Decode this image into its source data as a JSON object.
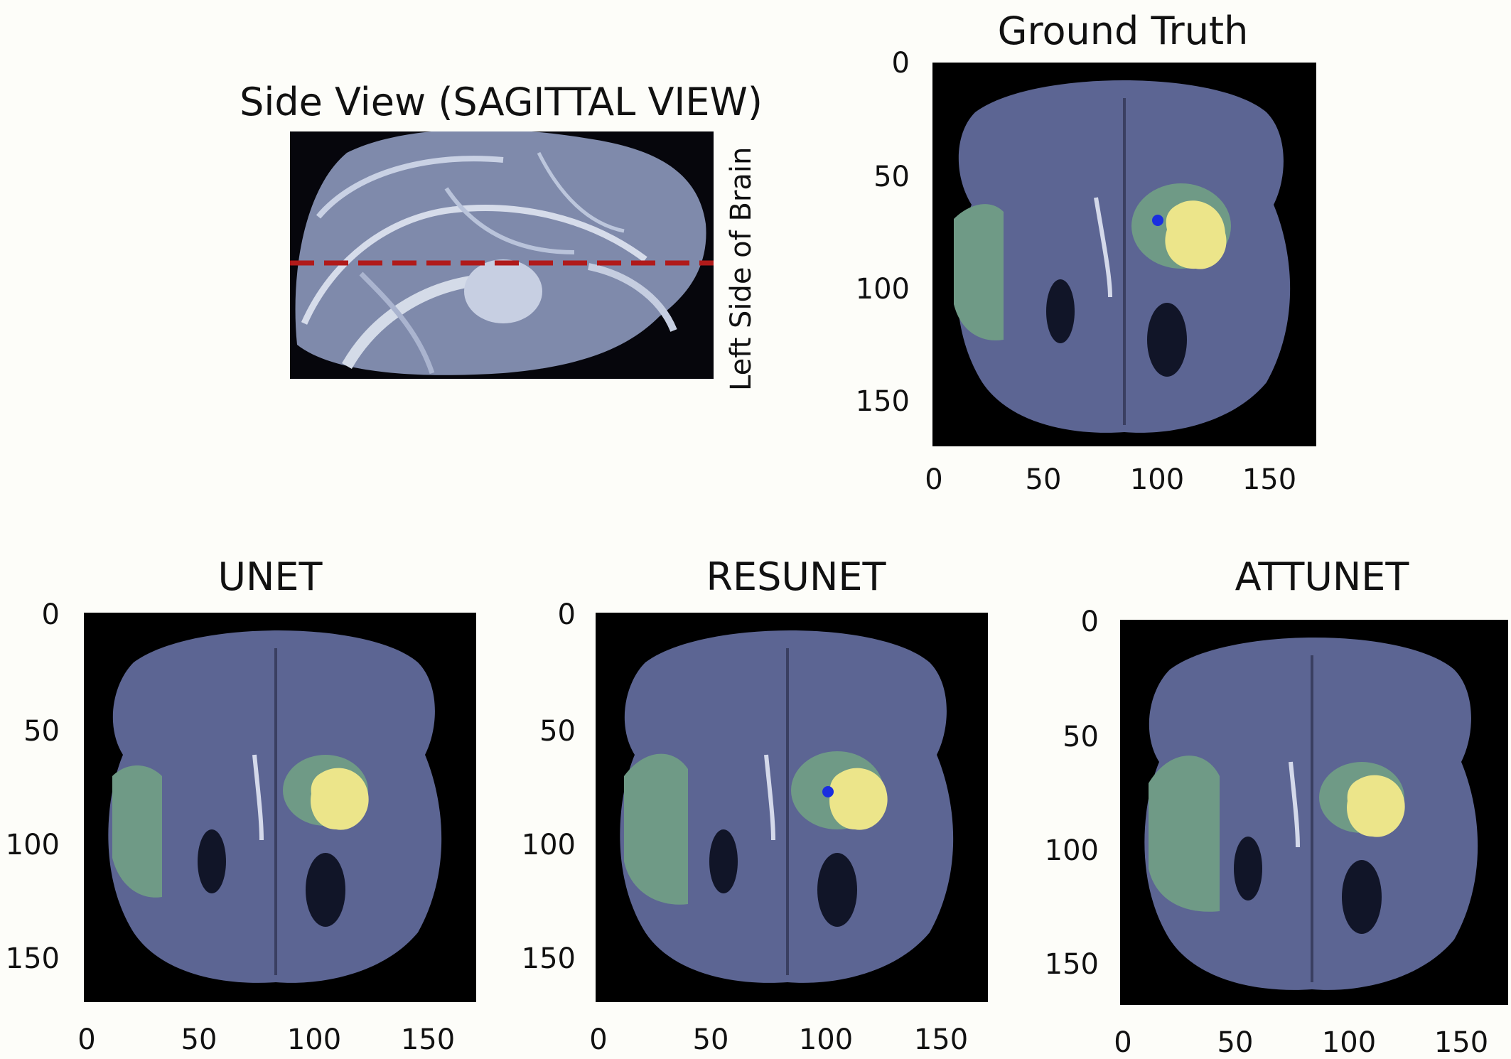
{
  "side_view": {
    "title": "Side View (SAGITTAL VIEW)",
    "slice_line_color": "#b01a1a"
  },
  "left_label": "Left Side of Brain",
  "panels": [
    {
      "id": "ground-truth",
      "title": "Ground Truth",
      "blue_spot": true,
      "tumor": "gt"
    },
    {
      "id": "unet",
      "title": "UNET",
      "blue_spot": false,
      "tumor": "unet"
    },
    {
      "id": "resunet",
      "title": "RESUNET",
      "blue_spot": true,
      "tumor": "resunet"
    },
    {
      "id": "attunet",
      "title": "ATTUNET",
      "blue_spot": false,
      "tumor": "attunet"
    }
  ],
  "axis": {
    "y_ticks": [
      "0",
      "50",
      "100",
      "150"
    ],
    "x_ticks": [
      "0",
      "50",
      "100",
      "150"
    ]
  },
  "colors": {
    "background": "#000000",
    "brain": "#5c6593",
    "edema": "#6f9a86",
    "tumor_core": "#ece58a",
    "enhancing": "#1a2ee0"
  }
}
